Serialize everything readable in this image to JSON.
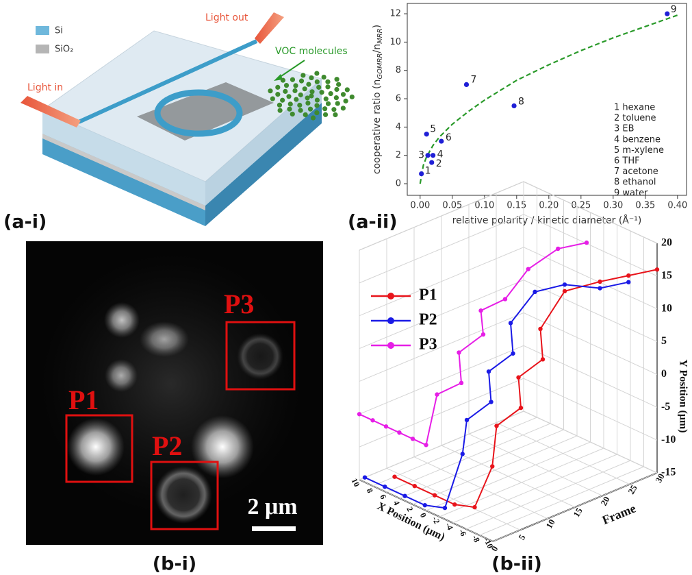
{
  "panels": {
    "a_i": {
      "label": "(a-i)",
      "legend": [
        "Si",
        "SiO₂"
      ],
      "light_out": "Light out",
      "light_in": "Light in",
      "voc": "VOC molecules"
    },
    "a_ii": {
      "label": "(a-ii)"
    },
    "b_i": {
      "label": "(b-i)",
      "regions": [
        "P1",
        "P2",
        "P3"
      ],
      "scale_bar": "2 μm"
    },
    "b_ii": {
      "label": "(b-ii)"
    }
  },
  "chart_data": [
    {
      "type": "scatter",
      "x": [
        0.002,
        0.018,
        0.012,
        0.02,
        0.01,
        0.033,
        0.072,
        0.146,
        0.384
      ],
      "values": [
        0.7,
        1.5,
        2.0,
        2.0,
        3.5,
        3.0,
        7.0,
        5.5,
        12.0
      ],
      "point_labels": [
        "1",
        "2",
        "3",
        "4",
        "5",
        "6",
        "7",
        "8",
        "9"
      ],
      "color": "#1f1fd6",
      "legend_text": [
        "1 hexane",
        "2 toluene",
        "3 EB",
        "4 benzene",
        "5 m-xylene",
        "6 THF",
        "7 acetone",
        "8 ethanol",
        "9 water"
      ],
      "fit": {
        "color": "#2a9a2a",
        "x": [
          0,
          0.005,
          0.01,
          0.02,
          0.03,
          0.05,
          0.075,
          0.1,
          0.15,
          0.2,
          0.25,
          0.3,
          0.35,
          0.4
        ],
        "values": [
          0,
          1.3,
          1.9,
          2.7,
          3.3,
          4.2,
          5.1,
          5.9,
          7.3,
          8.4,
          9.4,
          10.3,
          11.1,
          11.9
        ]
      },
      "xlabel": "relative polarity / kinetic diameter (Å⁻¹)",
      "ylabel": {
        "text": "cooperative ratio (n",
        "sub1": "GOMRR",
        "mid": "/n",
        "sub2": "MRR",
        "end": ")"
      },
      "xlim": [
        -0.02,
        0.414
      ],
      "ylim": [
        -0.82,
        12.73
      ],
      "xticks": [
        {
          "value": 0,
          "label": "0.00"
        },
        {
          "value": 0.05,
          "label": "0.05"
        },
        {
          "value": 0.1,
          "label": "0.10"
        },
        {
          "value": 0.15,
          "label": "0.15"
        },
        {
          "value": 0.2,
          "label": "0.20"
        },
        {
          "value": 0.25,
          "label": "0.25"
        },
        {
          "value": 0.3,
          "label": "0.30"
        },
        {
          "value": 0.35,
          "label": "0.35"
        },
        {
          "value": 0.4,
          "label": "0.40"
        }
      ],
      "yticks": [
        0,
        2,
        4,
        6,
        8,
        10,
        12
      ]
    },
    {
      "type": "line3d",
      "series": [
        {
          "name": "P1",
          "color": "#e8141b",
          "frame": [
            4,
            4,
            4,
            4,
            4,
            6,
            8,
            10,
            12,
            14,
            16,
            18,
            22,
            26,
            30
          ],
          "x": [
            8,
            5,
            2,
            -1,
            -4,
            -5,
            -4,
            -6,
            -4,
            -6,
            -4,
            -6,
            -8,
            -9,
            -10
          ],
          "y": [
            -15,
            -15,
            -15,
            -15,
            -14,
            -8,
            -3,
            0,
            3,
            6,
            9,
            15,
            16,
            16,
            16
          ]
        },
        {
          "name": "P2",
          "color": "#1a1ae6",
          "frame": [
            1,
            1,
            1,
            1,
            1,
            3,
            5,
            7,
            9,
            11,
            13,
            15,
            18,
            22,
            26
          ],
          "x": [
            10,
            7,
            4,
            1,
            -2,
            -3,
            -2,
            -4,
            -2,
            -4,
            -2,
            -4,
            -6,
            -8,
            -9
          ],
          "y": [
            -15,
            -15,
            -15,
            -15,
            -14,
            -6,
            -2,
            1,
            4,
            7,
            10,
            15,
            16,
            15,
            15
          ]
        },
        {
          "name": "P3",
          "color": "#e61ee6",
          "frame": [
            0,
            0,
            0,
            0,
            0,
            0,
            2,
            4,
            6,
            8,
            10,
            12,
            15,
            18,
            22
          ],
          "x": [
            10,
            8,
            6,
            4,
            2,
            0,
            0,
            -2,
            0,
            -2,
            0,
            -2,
            -3,
            -5,
            -6
          ],
          "y": [
            -5,
            -5,
            -5,
            -5,
            -5,
            -5,
            2,
            4,
            7,
            10,
            12,
            14,
            18,
            21,
            21
          ]
        }
      ],
      "xlabel": "X Position (μm)",
      "ylabel": "Y Position (μm)",
      "zlabel": "Frame",
      "xlim": [
        -10,
        10
      ],
      "xticks": [
        -10,
        -8,
        -6,
        -4,
        -2,
        0,
        2,
        4,
        6,
        8,
        10
      ],
      "ylim": [
        -15,
        20
      ],
      "yticks": [
        -15,
        -10,
        -5,
        0,
        5,
        10,
        15,
        20
      ],
      "zlim": [
        0,
        30
      ],
      "zticks": [
        0,
        5,
        10,
        15,
        20,
        25,
        30
      ]
    }
  ]
}
